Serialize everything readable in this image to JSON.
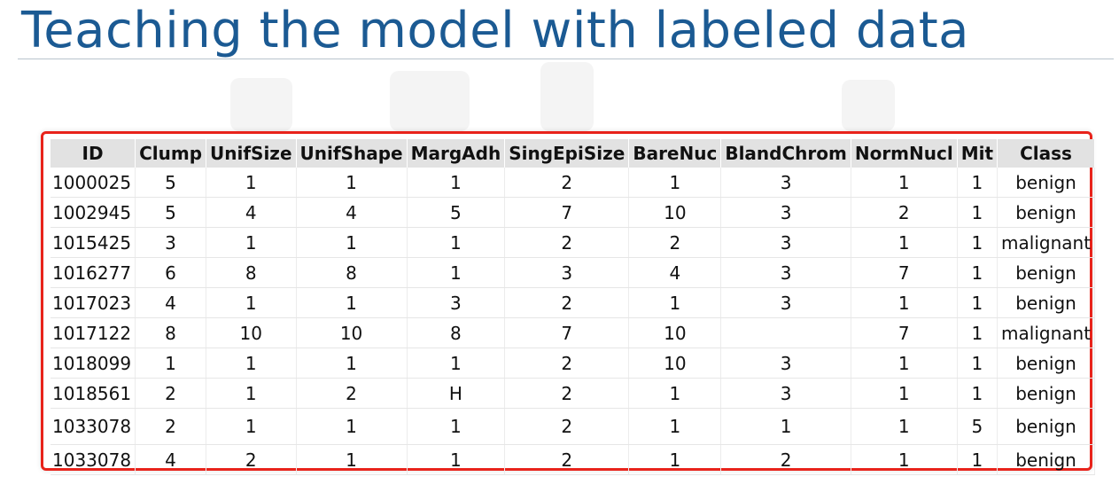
{
  "title": "Teaching the model with labeled data",
  "table": {
    "columns": [
      "ID",
      "Clump",
      "UnifSize",
      "UnifShape",
      "MargAdh",
      "SingEpiSize",
      "BareNuc",
      "BlandChrom",
      "NormNucl",
      "Mit",
      "Class"
    ],
    "rows": [
      [
        "1000025",
        "5",
        "1",
        "1",
        "1",
        "2",
        "1",
        "3",
        "1",
        "1",
        "benign"
      ],
      [
        "1002945",
        "5",
        "4",
        "4",
        "5",
        "7",
        "10",
        "3",
        "2",
        "1",
        "benign"
      ],
      [
        "1015425",
        "3",
        "1",
        "1",
        "1",
        "2",
        "2",
        "3",
        "1",
        "1",
        "malignant"
      ],
      [
        "1016277",
        "6",
        "8",
        "8",
        "1",
        "3",
        "4",
        "3",
        "7",
        "1",
        "benign"
      ],
      [
        "1017023",
        "4",
        "1",
        "1",
        "3",
        "2",
        "1",
        "3",
        "1",
        "1",
        "benign"
      ],
      [
        "1017122",
        "8",
        "10",
        "10",
        "8",
        "7",
        "10",
        "",
        "7",
        "1",
        "malignant"
      ],
      [
        "1018099",
        "1",
        "1",
        "1",
        "1",
        "2",
        "10",
        "3",
        "1",
        "1",
        "benign"
      ],
      [
        "1018561",
        "2",
        "1",
        "2",
        "H",
        "2",
        "1",
        "3",
        "1",
        "1",
        "benign"
      ],
      [
        "1033078",
        "2",
        "1",
        "1",
        "1",
        "2",
        "1",
        "1",
        "1",
        "5",
        "benign"
      ],
      [
        "1033078",
        "4",
        "2",
        "1",
        "1",
        "2",
        "1",
        "2",
        "1",
        "1",
        "benign"
      ]
    ]
  },
  "colors": {
    "title": "#1b5a93",
    "frame": "#e8231b",
    "header_bg": "#e2e2e2"
  }
}
